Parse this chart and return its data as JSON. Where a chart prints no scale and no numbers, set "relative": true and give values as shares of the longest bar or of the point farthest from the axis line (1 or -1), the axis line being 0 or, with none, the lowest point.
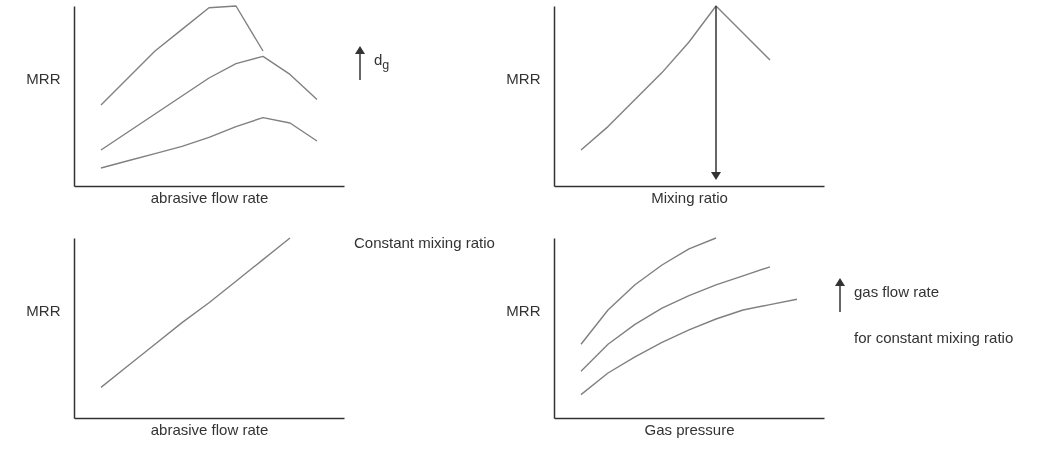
{
  "chart_data": [
    {
      "type": "line",
      "relative": true,
      "xlabel": "abrasive flow rate",
      "ylabel": "MRR",
      "categories": [
        null,
        null,
        null,
        null,
        null,
        null,
        null,
        null,
        null,
        null,
        null
      ],
      "series": [
        {
          "color": "#808080",
          "values": [
            null,
            0.45,
            0.6,
            0.75,
            0.87,
            0.99,
            1.0,
            0.75,
            null,
            null,
            null
          ]
        },
        {
          "color": "#808080",
          "values": [
            null,
            0.2,
            0.3,
            0.4,
            0.5,
            0.6,
            0.68,
            0.72,
            0.62,
            0.48,
            null
          ]
        },
        {
          "color": "#808080",
          "values": [
            null,
            0.1,
            0.14,
            0.18,
            0.22,
            0.27,
            0.33,
            0.38,
            0.35,
            0.25,
            null
          ]
        }
      ],
      "annotations": [
        "d$_{g}$"
      ]
    },
    {
      "type": "line",
      "relative": true,
      "xlabel": "Mixing ratio",
      "ylabel": "MRR",
      "categories": [
        null,
        null,
        null,
        null,
        null,
        null,
        null,
        null,
        null,
        null,
        null
      ],
      "series": [
        {
          "color": "#808080",
          "values": [
            null,
            0.2,
            0.33,
            0.48,
            0.63,
            0.8,
            1.0,
            0.85,
            0.7,
            null,
            null
          ]
        }
      ]
    },
    {
      "type": "line",
      "relative": true,
      "xlabel": "abrasive flow rate",
      "ylabel": "MRR",
      "categories": [
        null,
        null,
        null,
        null,
        null,
        null,
        null,
        null,
        null,
        null,
        null
      ],
      "series": [
        {
          "color": "#808080",
          "values": [
            null,
            0.17,
            0.29,
            0.41,
            0.53,
            0.64,
            0.76,
            0.88,
            1.0,
            null,
            null
          ]
        }
      ],
      "annotations": [
        "Constant mixing ratio"
      ]
    },
    {
      "type": "line",
      "relative": true,
      "xlabel": "Gas pressure",
      "ylabel": "MRR",
      "categories": [
        null,
        null,
        null,
        null,
        null,
        null,
        null,
        null,
        null,
        null,
        null
      ],
      "series": [
        {
          "color": "#808080",
          "values": [
            null,
            0.41,
            0.6,
            0.74,
            0.85,
            0.94,
            1.0,
            null,
            null,
            null,
            null
          ]
        },
        {
          "color": "#808080",
          "values": [
            null,
            0.26,
            0.41,
            0.52,
            0.61,
            0.68,
            0.74,
            0.79,
            0.84,
            null,
            null
          ]
        },
        {
          "color": "#808080",
          "values": [
            null,
            0.13,
            0.25,
            0.34,
            0.42,
            0.49,
            0.55,
            0.6,
            0.63,
            0.66,
            null
          ]
        }
      ],
      "annotations": [
        "gas flow rate",
        "for constant mixing ratio"
      ]
    }
  ]
}
